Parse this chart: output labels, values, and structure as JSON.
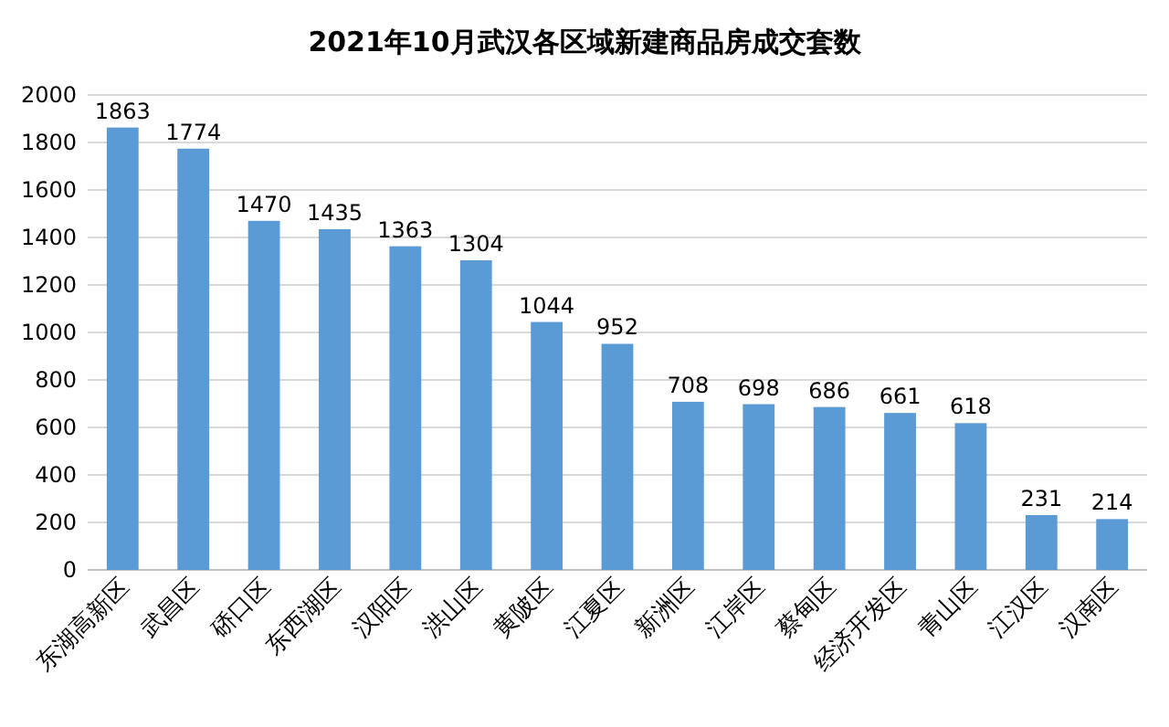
{
  "chart_data": {
    "type": "bar",
    "title": "2021年10月武汉各区域新建商品房成交套数",
    "categories": [
      "东湖高新区",
      "武昌区",
      "硚口区",
      "东西湖区",
      "汉阳区",
      "洪山区",
      "黄陂区",
      "江夏区",
      "新洲区",
      "江岸区",
      "蔡甸区",
      "经济开发区",
      "青山区",
      "江汉区",
      "汉南区"
    ],
    "values": [
      1863,
      1774,
      1470,
      1435,
      1363,
      1304,
      1044,
      952,
      708,
      698,
      686,
      661,
      618,
      231,
      214
    ],
    "color": "#5b9bd5",
    "ylim": [
      0,
      2000
    ],
    "yticks": [
      0,
      200,
      400,
      600,
      800,
      1000,
      1200,
      1400,
      1600,
      1800,
      2000
    ],
    "grid": "y",
    "data_labels": true
  }
}
